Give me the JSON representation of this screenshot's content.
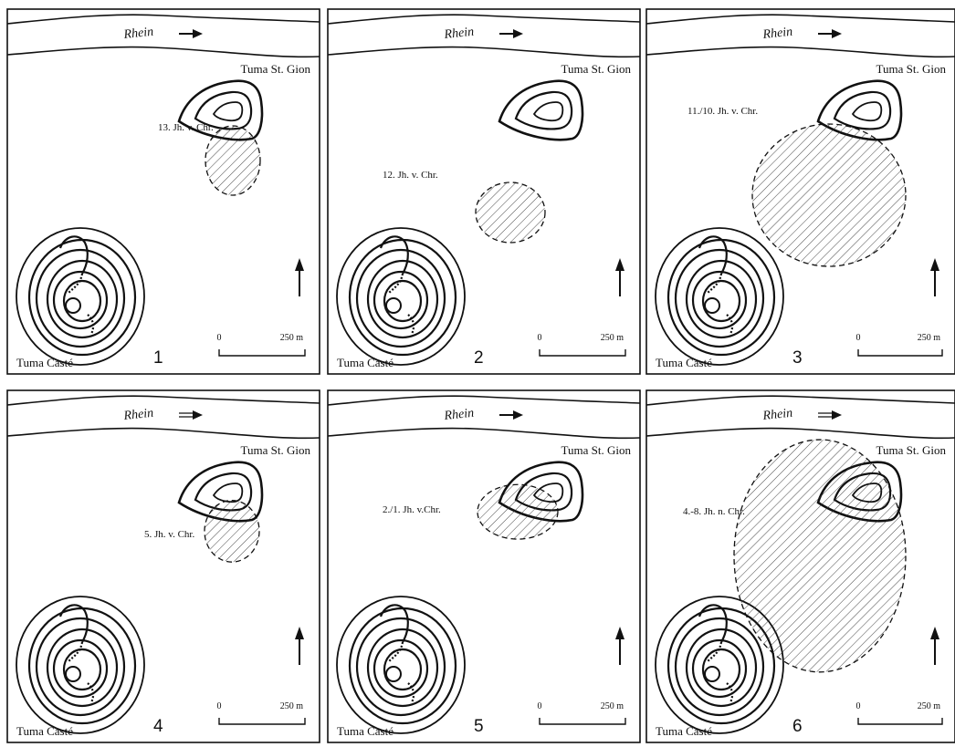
{
  "figure": {
    "river_label": "Rhein",
    "hill_north_label": "Tuma St. Gion",
    "hill_south_label": "Tuma Casté",
    "scale_start": "0",
    "scale_end": "250 m",
    "north_arrow_icon": "north-arrow-icon",
    "flow_arrow_icon": "right-arrow-icon",
    "hatch_color": "#333333",
    "line_color": "#111111"
  },
  "panels": [
    {
      "number": "1",
      "period": "13. Jh. v. Chr.",
      "flow_arrow": "single"
    },
    {
      "number": "2",
      "period": "12. Jh. v. Chr.",
      "flow_arrow": "single"
    },
    {
      "number": "3",
      "period": "11./10. Jh. v. Chr.",
      "flow_arrow": "single"
    },
    {
      "number": "4",
      "period": "5. Jh. v. Chr.",
      "flow_arrow": "double"
    },
    {
      "number": "5",
      "period": "2./1. Jh. v.Chr.",
      "flow_arrow": "single"
    },
    {
      "number": "6",
      "period": "4.-8. Jh. n. Chr.",
      "flow_arrow": "double"
    }
  ]
}
